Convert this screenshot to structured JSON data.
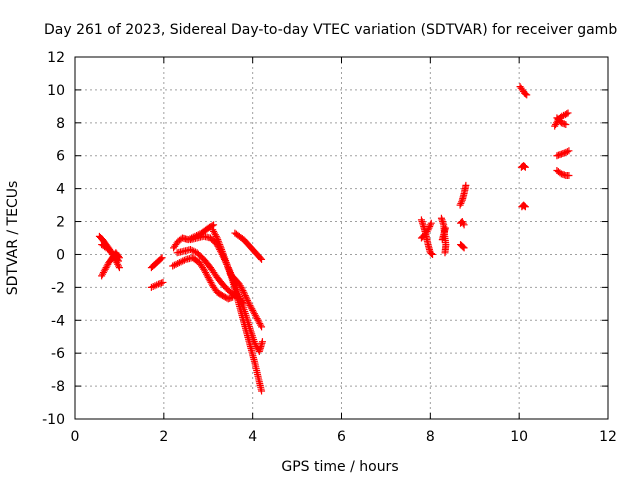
{
  "chart_data": {
    "type": "scatter",
    "title": "Day 261 of 2023, Sidereal Day-to-day VTEC variation (SDTVAR) for receiver gamb",
    "xlabel": "GPS time / hours",
    "ylabel": "SDTVAR / TECUs",
    "xlim": [
      0,
      12
    ],
    "ylim": [
      -10,
      12
    ],
    "xticks": [
      "0",
      "2",
      "4",
      "6",
      "8",
      "10",
      "12"
    ],
    "yticks": [
      "-10",
      "-8",
      "-6",
      "-4",
      "-2",
      "0",
      "2",
      "4",
      "6",
      "8",
      "10",
      "12"
    ],
    "grid": true,
    "marker": "plus",
    "color": "#ff0000",
    "segments": [
      [
        [
          0.55,
          1.1
        ],
        [
          0.62,
          0.9
        ],
        [
          0.7,
          0.6
        ],
        [
          0.78,
          0.3
        ],
        [
          0.86,
          -0.1
        ],
        [
          0.94,
          -0.5
        ],
        [
          1.0,
          -0.8
        ]
      ],
      [
        [
          0.6,
          -1.3
        ],
        [
          0.68,
          -0.9
        ],
        [
          0.76,
          -0.5
        ],
        [
          0.84,
          -0.2
        ],
        [
          0.92,
          0.1
        ],
        [
          1.0,
          -0.2
        ]
      ],
      [
        [
          0.6,
          0.6
        ],
        [
          0.7,
          0.4
        ],
        [
          0.8,
          0.2
        ],
        [
          0.9,
          -0.1
        ],
        [
          0.98,
          -0.4
        ]
      ],
      [
        [
          1.72,
          -0.8
        ],
        [
          1.8,
          -0.6
        ],
        [
          1.88,
          -0.4
        ],
        [
          1.96,
          -0.2
        ]
      ],
      [
        [
          1.72,
          -2.0
        ],
        [
          1.8,
          -1.9
        ],
        [
          1.88,
          -1.8
        ],
        [
          1.98,
          -1.7
        ]
      ],
      [
        [
          2.22,
          0.4
        ],
        [
          2.32,
          0.8
        ],
        [
          2.42,
          1.0
        ],
        [
          2.55,
          0.9
        ],
        [
          2.7,
          1.1
        ],
        [
          2.85,
          1.3
        ],
        [
          3.0,
          1.6
        ],
        [
          3.12,
          1.8
        ]
      ],
      [
        [
          2.2,
          -0.7
        ],
        [
          2.35,
          -0.5
        ],
        [
          2.5,
          -0.3
        ],
        [
          2.65,
          -0.2
        ],
        [
          2.8,
          -0.5
        ],
        [
          2.9,
          -0.9
        ],
        [
          3.0,
          -1.4
        ],
        [
          3.1,
          -1.9
        ],
        [
          3.2,
          -2.3
        ],
        [
          3.32,
          -2.5
        ],
        [
          3.45,
          -2.7
        ],
        [
          3.55,
          -2.6
        ]
      ],
      [
        [
          2.3,
          0.1
        ],
        [
          2.45,
          0.2
        ],
        [
          2.6,
          0.3
        ],
        [
          2.75,
          0.1
        ],
        [
          2.9,
          -0.3
        ],
        [
          3.05,
          -0.8
        ],
        [
          3.2,
          -1.4
        ],
        [
          3.35,
          -1.9
        ],
        [
          3.5,
          -2.3
        ],
        [
          3.65,
          -2.6
        ],
        [
          3.8,
          -3.0
        ]
      ],
      [
        [
          2.6,
          0.9
        ],
        [
          2.75,
          1.0
        ],
        [
          2.9,
          1.1
        ],
        [
          3.05,
          1.0
        ],
        [
          3.2,
          0.6
        ],
        [
          3.35,
          -0.2
        ],
        [
          3.5,
          -1.1
        ],
        [
          3.62,
          -2.0
        ],
        [
          3.75,
          -2.9
        ],
        [
          3.85,
          -3.7
        ],
        [
          3.95,
          -4.6
        ],
        [
          4.05,
          -5.4
        ],
        [
          4.15,
          -5.9
        ],
        [
          4.22,
          -5.3
        ]
      ],
      [
        [
          3.1,
          1.5
        ],
        [
          3.2,
          1.0
        ],
        [
          3.3,
          0.3
        ],
        [
          3.42,
          -0.6
        ],
        [
          3.55,
          -1.6
        ],
        [
          3.65,
          -2.6
        ],
        [
          3.75,
          -3.6
        ],
        [
          3.85,
          -4.6
        ],
        [
          3.95,
          -5.6
        ],
        [
          4.05,
          -6.6
        ],
        [
          4.12,
          -7.4
        ],
        [
          4.2,
          -8.3
        ]
      ],
      [
        [
          3.6,
          1.3
        ],
        [
          3.7,
          1.1
        ],
        [
          3.8,
          0.9
        ],
        [
          3.9,
          0.6
        ],
        [
          4.0,
          0.3
        ],
        [
          4.1,
          0.0
        ],
        [
          4.2,
          -0.3
        ]
      ],
      [
        [
          3.5,
          -1.2
        ],
        [
          3.6,
          -1.5
        ],
        [
          3.7,
          -1.8
        ],
        [
          3.8,
          -2.3
        ],
        [
          3.9,
          -2.9
        ],
        [
          4.0,
          -3.4
        ],
        [
          4.1,
          -3.9
        ],
        [
          4.2,
          -4.4
        ]
      ],
      [
        [
          7.8,
          2.1
        ],
        [
          7.85,
          1.7
        ],
        [
          7.9,
          1.2
        ],
        [
          7.95,
          0.6
        ],
        [
          8.0,
          0.1
        ],
        [
          8.05,
          0.0
        ]
      ],
      [
        [
          7.8,
          1.0
        ],
        [
          7.88,
          1.2
        ],
        [
          7.95,
          1.5
        ],
        [
          8.02,
          1.9
        ]
      ],
      [
        [
          8.25,
          2.2
        ],
        [
          8.3,
          1.8
        ],
        [
          8.32,
          1.2
        ],
        [
          8.35,
          0.6
        ],
        [
          8.33,
          0.1
        ]
      ],
      [
        [
          8.27,
          0.9
        ],
        [
          8.31,
          1.3
        ],
        [
          8.34,
          1.6
        ]
      ],
      [
        [
          8.67,
          3.0
        ],
        [
          8.72,
          3.3
        ],
        [
          8.76,
          3.7
        ],
        [
          8.8,
          4.2
        ]
      ],
      [
        [
          8.68,
          1.9
        ],
        [
          8.72,
          2.0
        ],
        [
          8.76,
          1.8
        ]
      ],
      [
        [
          8.68,
          0.6
        ],
        [
          8.72,
          0.5
        ],
        [
          8.76,
          0.4
        ]
      ],
      [
        [
          10.02,
          10.2
        ],
        [
          10.07,
          10.0
        ],
        [
          10.12,
          9.8
        ],
        [
          10.17,
          9.7
        ]
      ],
      [
        [
          10.05,
          5.3
        ],
        [
          10.1,
          5.4
        ],
        [
          10.14,
          5.3
        ]
      ],
      [
        [
          10.06,
          2.9
        ],
        [
          10.1,
          3.0
        ],
        [
          10.14,
          2.9
        ]
      ],
      [
        [
          10.8,
          7.8
        ],
        [
          10.88,
          8.2
        ],
        [
          10.96,
          8.4
        ],
        [
          11.04,
          8.5
        ],
        [
          11.1,
          8.6
        ]
      ],
      [
        [
          10.85,
          8.3
        ],
        [
          10.95,
          8.0
        ],
        [
          11.05,
          7.9
        ]
      ],
      [
        [
          10.85,
          6.0
        ],
        [
          10.95,
          6.1
        ],
        [
          11.05,
          6.2
        ],
        [
          11.12,
          6.3
        ]
      ],
      [
        [
          10.85,
          5.1
        ],
        [
          10.95,
          4.9
        ],
        [
          11.05,
          4.8
        ],
        [
          11.12,
          4.8
        ]
      ]
    ]
  }
}
